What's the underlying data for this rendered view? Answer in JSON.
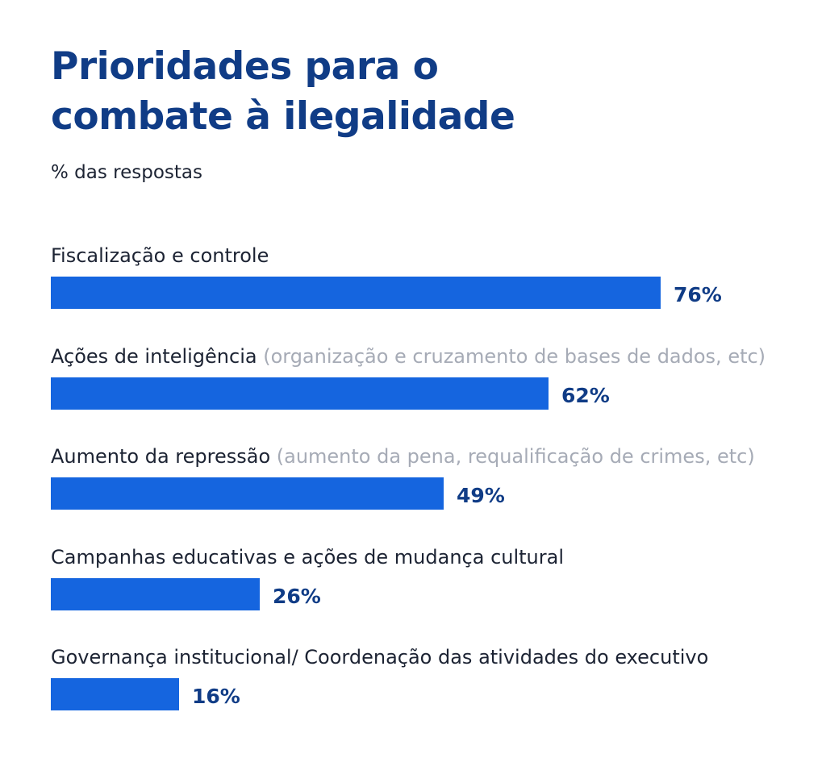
{
  "header": {
    "title_line1": "Prioridades para o",
    "title_line2": "combate à ilegalidade",
    "subtitle": "% das respostas"
  },
  "colors": {
    "bar": "#1565df",
    "title": "#103c86",
    "value_label": "#103c86",
    "label": "#1c2333",
    "note": "#a6abb6"
  },
  "chart_data": {
    "type": "bar",
    "orientation": "horizontal",
    "title": "Prioridades para o combate à ilegalidade",
    "subtitle": "% das respostas",
    "unit": "%",
    "categories": [
      "Fiscalização e controle",
      "Ações de inteligência",
      "Aumento da repressão",
      "Campanhas educativas e ações de mudança cultural",
      "Governança institucional/ Coordenação das atividades do executivo"
    ],
    "notes": [
      "",
      "(organização e cruzamento de bases de dados, etc)",
      "(aumento da pena, requalificação de crimes, etc)",
      "",
      ""
    ],
    "values": [
      76,
      62,
      49,
      26,
      16
    ],
    "value_labels": [
      "76%",
      "62%",
      "49%",
      "26%",
      "16%"
    ],
    "xlim": [
      0,
      76
    ],
    "grid": false,
    "legend": "none"
  }
}
